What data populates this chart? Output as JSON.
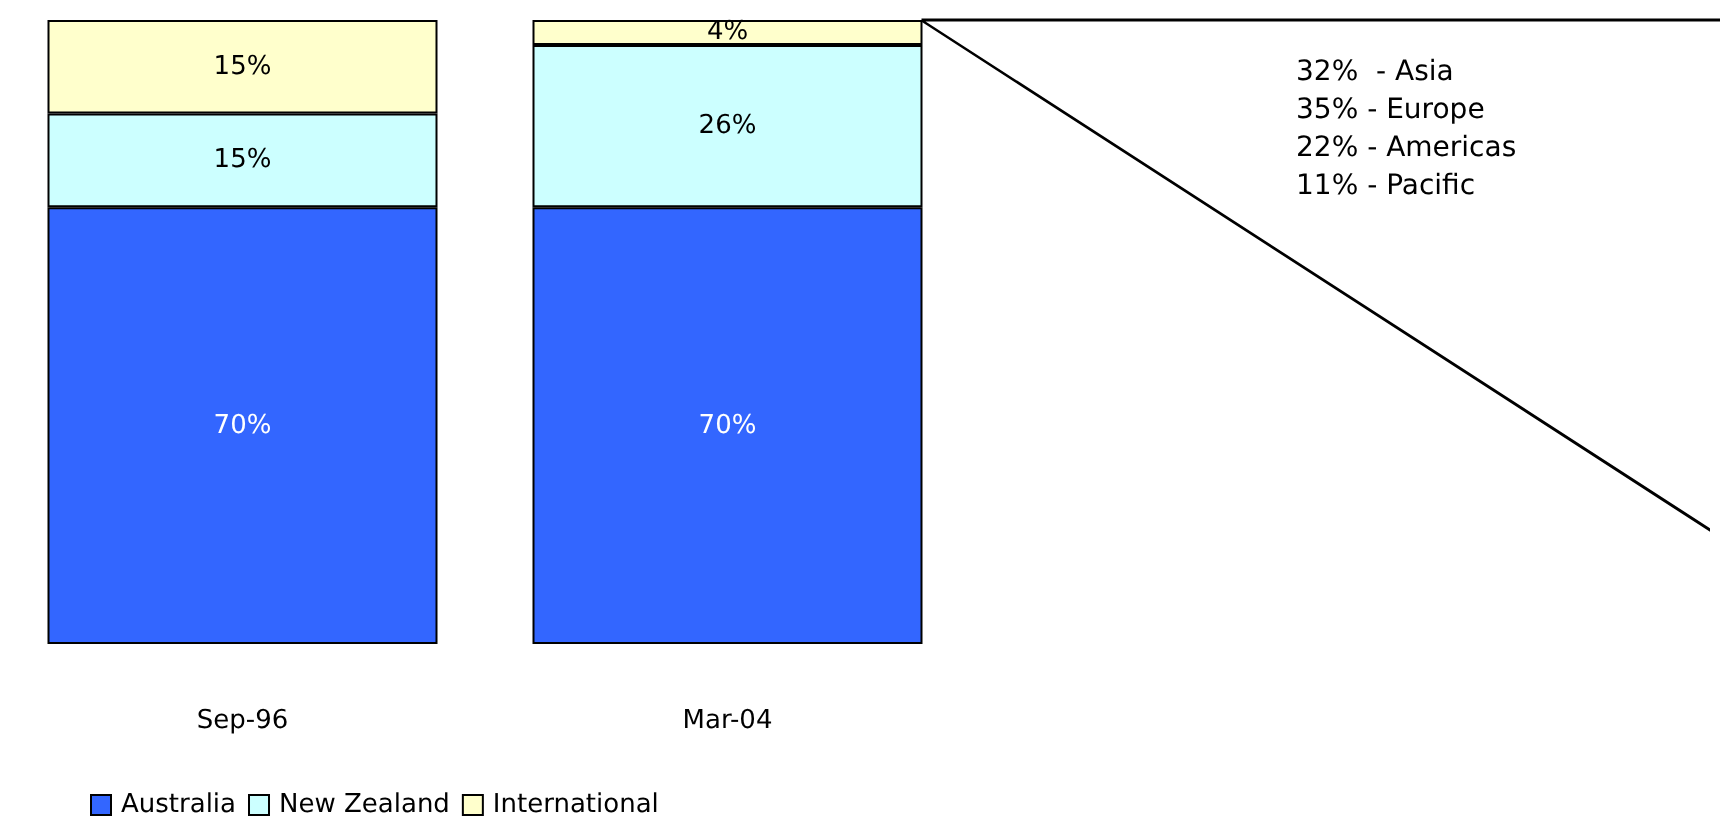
{
  "chart_data": {
    "type": "bar",
    "stacked": true,
    "categories": [
      "Sep-96",
      "Mar-04"
    ],
    "series": [
      {
        "name": "Australia",
        "color": "#3366ff",
        "values": [
          70,
          70
        ],
        "value_labels": [
          "70%",
          "70%"
        ]
      },
      {
        "name": "New Zealand",
        "color": "#ccffff",
        "values": [
          15,
          26
        ],
        "value_labels": [
          "15%",
          "26%"
        ]
      },
      {
        "name": "International",
        "color": "#ffffcc",
        "values": [
          15,
          4
        ],
        "value_labels": [
          "15%",
          "4%"
        ]
      }
    ],
    "annotations": [
      "32%  - Asia",
      "35% - Europe",
      "22% - Americas",
      "11% - Pacific"
    ],
    "legend": "bottom"
  }
}
